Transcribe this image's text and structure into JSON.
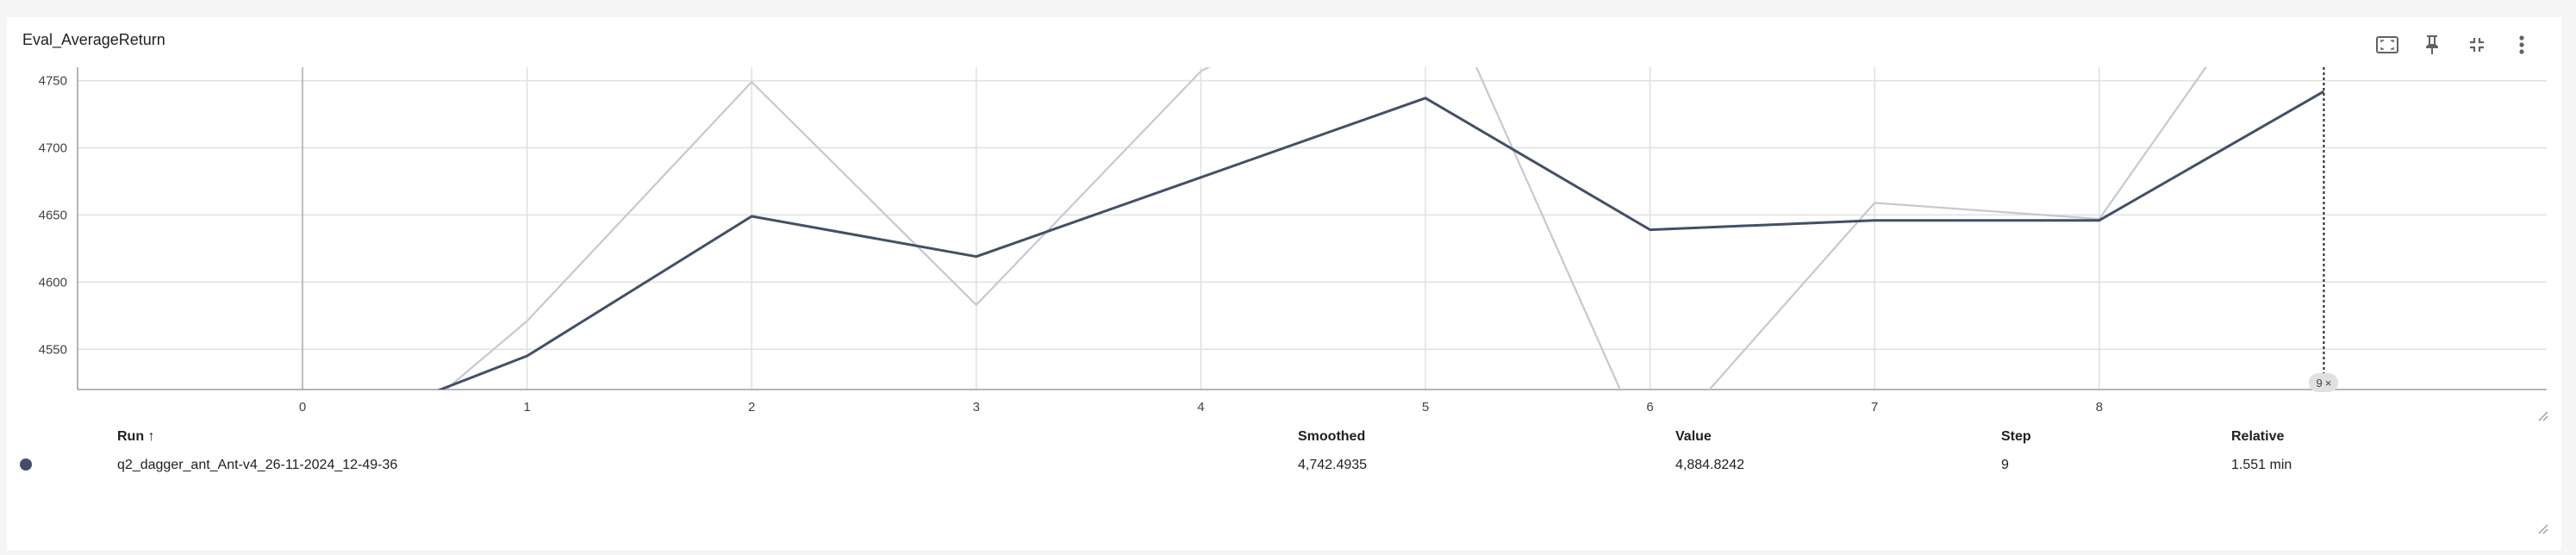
{
  "card": {
    "title": "Eval_AverageReturn"
  },
  "toolbar": {
    "items": [
      {
        "name": "fit-domain-icon"
      },
      {
        "name": "pin-icon"
      },
      {
        "name": "collapse-icon"
      },
      {
        "name": "more-vert-icon"
      }
    ]
  },
  "chart_data": {
    "type": "line",
    "title": "Eval_AverageReturn",
    "xlabel": "",
    "ylabel": "",
    "xlim": [
      -1,
      10.5
    ],
    "ylim": [
      4520,
      4760
    ],
    "x_ticks": [
      0,
      1,
      2,
      3,
      4,
      5,
      6,
      7,
      8,
      9
    ],
    "y_ticks": [
      4550,
      4600,
      4650,
      4700,
      4750
    ],
    "grid": true,
    "cursor_step": 9,
    "series": [
      {
        "name": "q2_dagger_ant_Ant-v4_26-11-2024_12-49-36",
        "role": "raw",
        "color": "#c6c8d2",
        "x": [
          0,
          1,
          2,
          3,
          4,
          5,
          6,
          7,
          8,
          9
        ],
        "y": [
          4430,
          4571,
          4749,
          4583,
          4757,
          4845,
          4470,
          4659,
          4647,
          4885
        ]
      },
      {
        "name": "q2_dagger_ant_Ant-v4_26-11-2024_12-49-36",
        "role": "smoothed",
        "color": "#425066",
        "x": [
          0,
          1,
          2,
          3,
          4,
          5,
          6,
          7,
          8,
          9
        ],
        "y": [
          4480,
          4545,
          4649,
          4619,
          4678,
          4737,
          4639,
          4646,
          4646,
          4742
        ]
      }
    ]
  },
  "table": {
    "headers": {
      "run": "Run ↑",
      "smoothed": "Smoothed",
      "value": "Value",
      "step": "Step",
      "relative": "Relative"
    },
    "rows": [
      {
        "color": "#425066",
        "run": "q2_dagger_ant_Ant-v4_26-11-2024_12-49-36",
        "smoothed": "4,742.4935",
        "value": "4,884.8242",
        "step": "9",
        "relative": "1.551 min"
      }
    ]
  },
  "badge": {
    "step": "9",
    "close": "×"
  }
}
